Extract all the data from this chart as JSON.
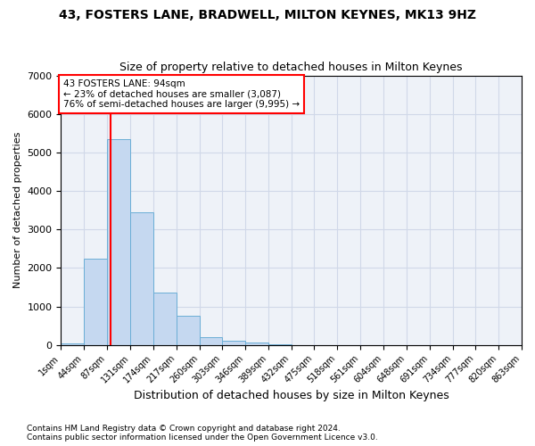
{
  "title1": "43, FOSTERS LANE, BRADWELL, MILTON KEYNES, MK13 9HZ",
  "title2": "Size of property relative to detached houses in Milton Keynes",
  "xlabel": "Distribution of detached houses by size in Milton Keynes",
  "ylabel": "Number of detached properties",
  "footnote1": "Contains HM Land Registry data © Crown copyright and database right 2024.",
  "footnote2": "Contains public sector information licensed under the Open Government Licence v3.0.",
  "annotation_line1": "43 FOSTERS LANE: 94sqm",
  "annotation_line2": "← 23% of detached houses are smaller (3,087)",
  "annotation_line3": "76% of semi-detached houses are larger (9,995) →",
  "bar_color": "#c5d8f0",
  "bar_edge_color": "#6baed6",
  "red_line_x": 94,
  "bin_edges": [
    1,
    44,
    87,
    131,
    174,
    217,
    260,
    303,
    346,
    389,
    432,
    475,
    518,
    561,
    604,
    648,
    691,
    734,
    777,
    820,
    863
  ],
  "bin_labels": [
    "1sqm",
    "44sqm",
    "87sqm",
    "131sqm",
    "174sqm",
    "217sqm",
    "260sqm",
    "303sqm",
    "346sqm",
    "389sqm",
    "432sqm",
    "475sqm",
    "518sqm",
    "561sqm",
    "604sqm",
    "648sqm",
    "691sqm",
    "734sqm",
    "777sqm",
    "820sqm",
    "863sqm"
  ],
  "bar_heights": [
    50,
    2250,
    5350,
    3450,
    1350,
    750,
    200,
    110,
    60,
    15,
    5,
    2,
    1,
    0,
    0,
    0,
    0,
    0,
    0,
    0
  ],
  "ylim": [
    0,
    7000
  ],
  "yticks": [
    0,
    1000,
    2000,
    3000,
    4000,
    5000,
    6000,
    7000
  ],
  "grid_color": "#d0d8e8",
  "background_color": "#eef2f8"
}
